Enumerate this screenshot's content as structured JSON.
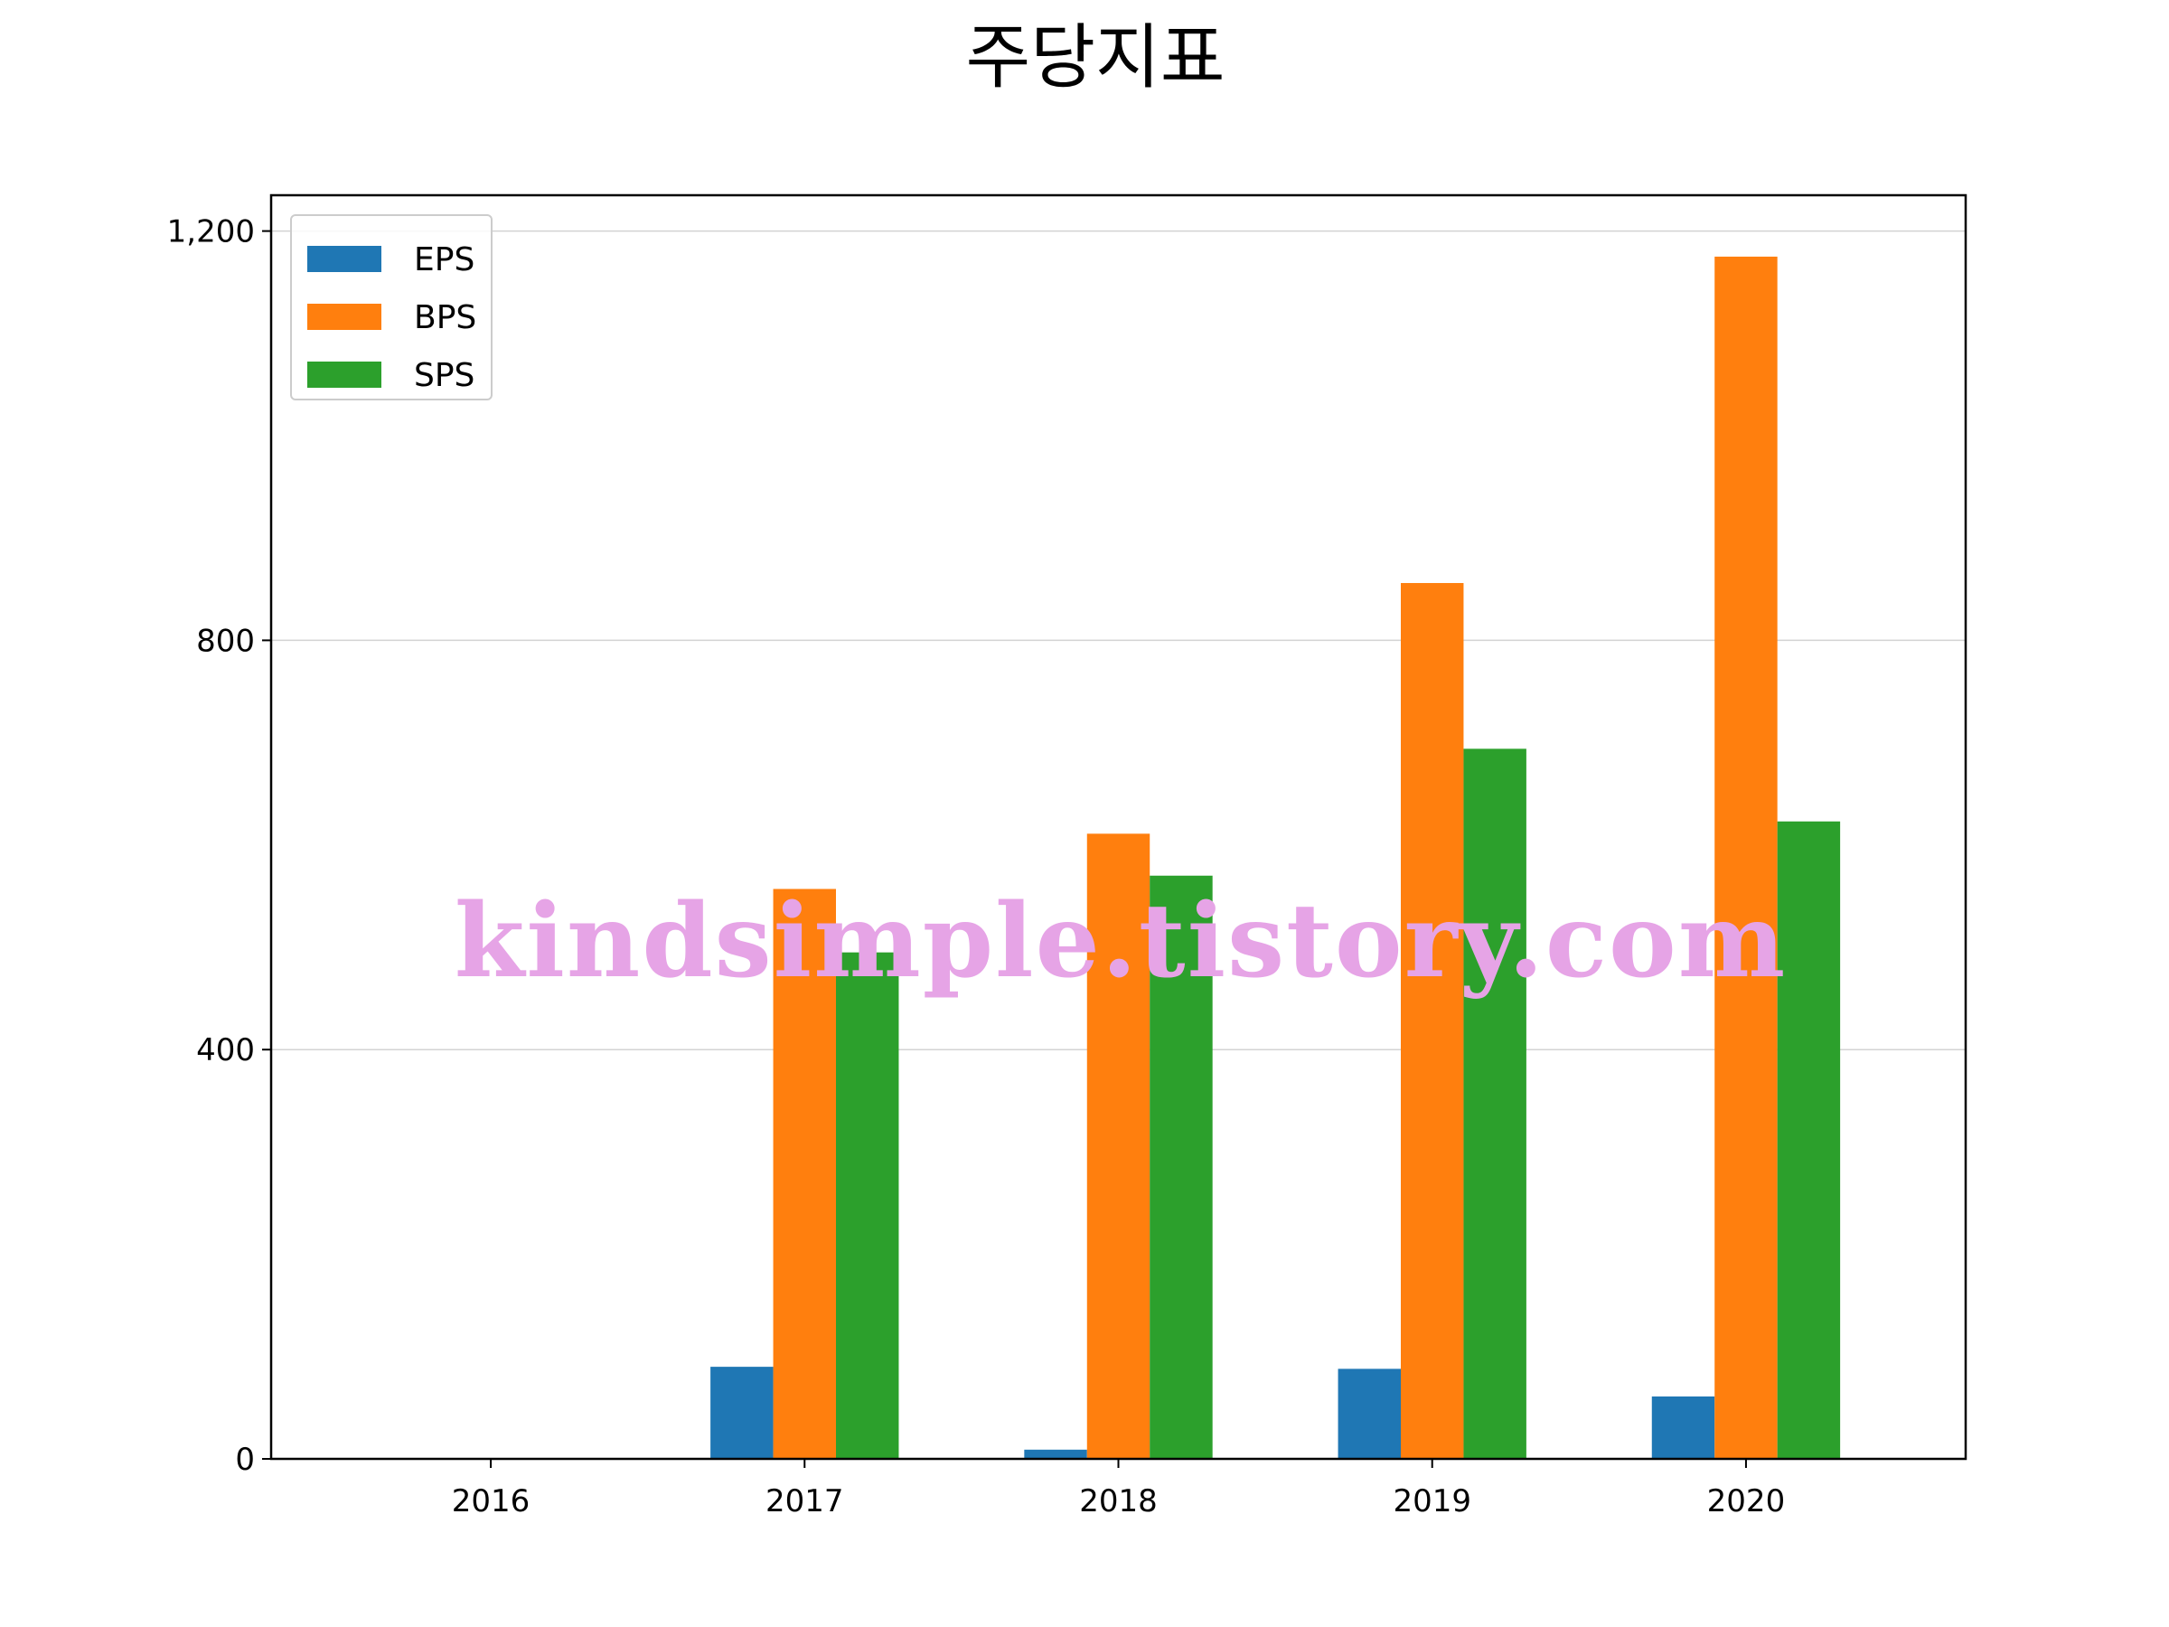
{
  "chart_data": {
    "type": "bar",
    "title": "주당지표",
    "xlabel": "",
    "ylabel": "",
    "categories": [
      "2016",
      "2017",
      "2018",
      "2019",
      "2020"
    ],
    "series": [
      {
        "name": "EPS",
        "color": "#1f77b4",
        "values": [
          0,
          90,
          9,
          88,
          61
        ]
      },
      {
        "name": "BPS",
        "color": "#ff7f0e",
        "values": [
          0,
          557,
          611,
          856,
          1175
        ]
      },
      {
        "name": "SPS",
        "color": "#2ca02c",
        "values": [
          0,
          495,
          570,
          694,
          623
        ]
      }
    ],
    "ylim": [
      0,
      1235
    ],
    "yticks": [
      0,
      400,
      800,
      1200
    ],
    "ytick_labels": [
      "0",
      "400",
      "800",
      "1,200"
    ],
    "grid": "horizontal",
    "legend_position": "top-left",
    "watermark": "kindsimple.tistory.com"
  }
}
